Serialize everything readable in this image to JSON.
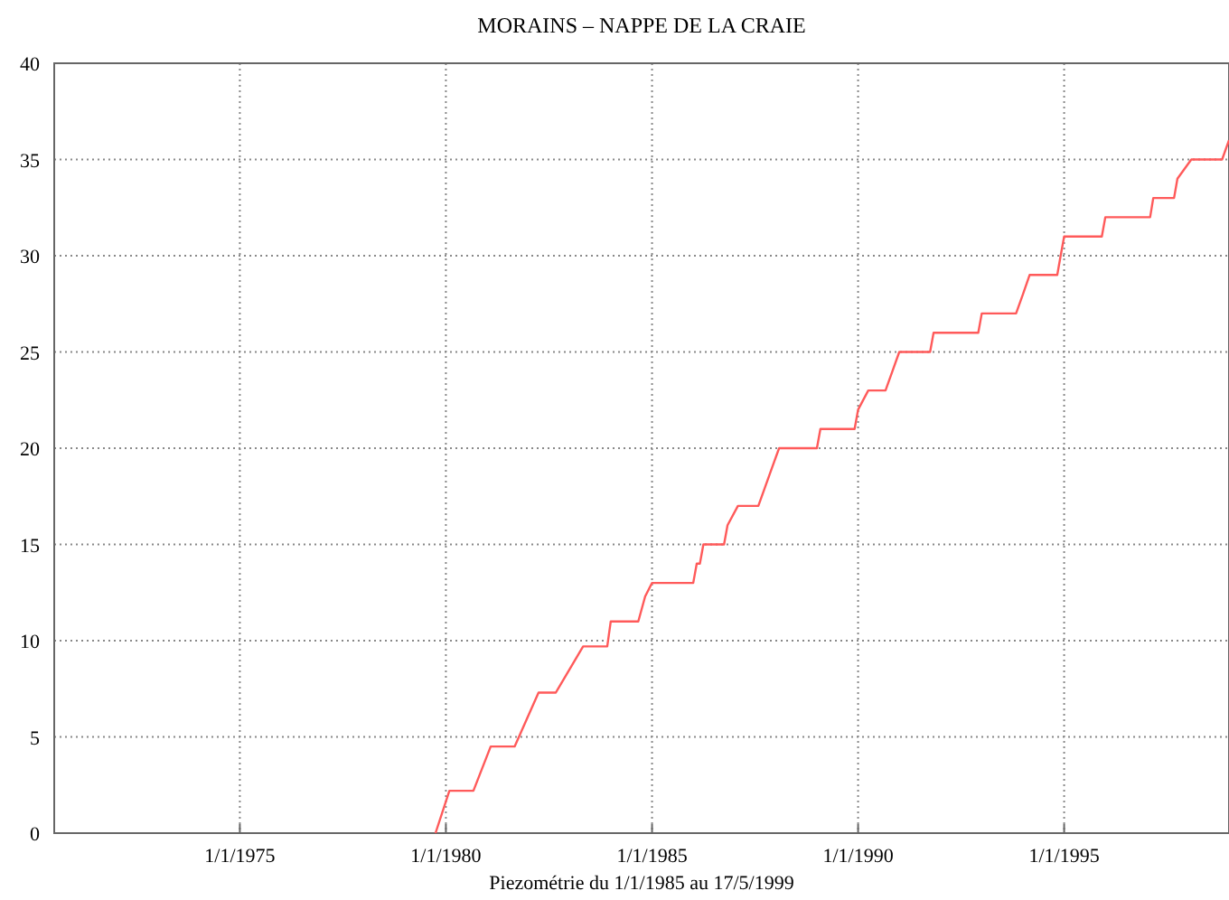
{
  "chart_data": {
    "type": "line",
    "title": "MORAINS – NAPPE DE LA CRAIE",
    "xlabel": "Piezométrie du 1/1/1985 au 17/5/1999",
    "x": [
      "1979-10",
      "1980-02",
      "1980-09",
      "1981-02",
      "1981-09",
      "1982-04",
      "1982-09",
      "1983-05",
      "1983-12",
      "1984-01",
      "1984-09",
      "1984-11",
      "1985-01",
      "1986-01",
      "1986-02",
      "1986-03",
      "1986-04",
      "1986-10",
      "1986-11",
      "1987-02",
      "1987-08",
      "1987-10",
      "1987-12",
      "1988-02",
      "1989-01",
      "1989-02",
      "1989-12",
      "1990-01",
      "1990-04",
      "1990-09",
      "1990-11",
      "1991-01",
      "1991-10",
      "1991-11",
      "1992-12",
      "1993-01",
      "1993-11",
      "1994-01",
      "1994-03",
      "1994-11",
      "1994-12",
      "1995-01",
      "1995-12",
      "1996-01",
      "1997-02",
      "1997-03",
      "1997-09",
      "1997-10",
      "1998-02",
      "1998-11",
      "1999-01"
    ],
    "series": [
      {
        "color": "#ff5a5a",
        "values": [
          0,
          2.2,
          2.2,
          4.5,
          4.5,
          7.3,
          7.3,
          9.7,
          9.7,
          11,
          11,
          12.3,
          13,
          13,
          14,
          14,
          15,
          15,
          16,
          17,
          17,
          18,
          19,
          20,
          20,
          21,
          21,
          22,
          23,
          23,
          24,
          25,
          25,
          26,
          26,
          27,
          27,
          28,
          29,
          29,
          30,
          31,
          31,
          32,
          32,
          33,
          33,
          34,
          35,
          35,
          36
        ]
      }
    ],
    "xlim": [
      "1970-07-01",
      "1999-01-01"
    ],
    "xticks": [
      {
        "value": "1975-01-01",
        "label": "1/1/1975"
      },
      {
        "value": "1980-01-01",
        "label": "1/1/1980"
      },
      {
        "value": "1985-01-01",
        "label": "1/1/1985"
      },
      {
        "value": "1990-01-01",
        "label": "1/1/1990"
      },
      {
        "value": "1995-01-01",
        "label": "1/1/1995"
      }
    ],
    "ylim": [
      0,
      40
    ],
    "yticks": [
      0,
      5,
      10,
      15,
      20,
      25,
      30,
      35,
      40
    ],
    "grid": true,
    "marker": "none",
    "line_style": "solid"
  }
}
